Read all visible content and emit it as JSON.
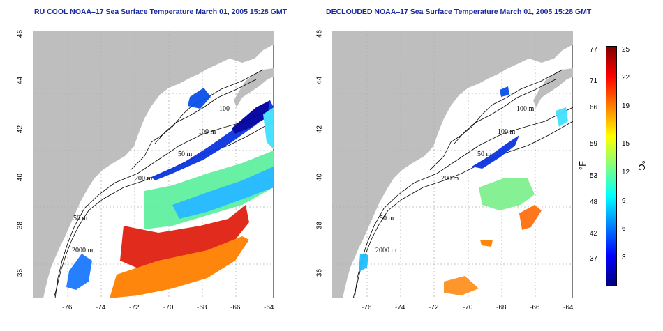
{
  "titles": {
    "left": "RU COOL NOAA–17 Sea Surface Temperature March 01, 2005 15:28 GMT",
    "right": "DECLOUDED NOAA–17 Sea Surface Temperature March 01, 2005 15:28 GMT"
  },
  "axes": {
    "x_ticks": [
      "-76",
      "-74",
      "-72",
      "-70",
      "-68",
      "-66",
      "-64"
    ],
    "y_ticks": [
      "46",
      "44",
      "42",
      "40",
      "38",
      "36"
    ]
  },
  "contours": {
    "c100a": "100 m",
    "c100b": "100 m",
    "c50": "50 m",
    "c200": "200 m",
    "c50s": "50 m",
    "c2000": "2000 m",
    "c100_left_top": "100"
  },
  "colorbar": {
    "fahrenheit_ticks": [
      "77",
      "71",
      "66",
      "59",
      "53",
      "48",
      "42",
      "37"
    ],
    "celsius_ticks": [
      "25",
      "22",
      "19",
      "15",
      "12",
      "9",
      "6",
      "3"
    ],
    "unit_f": "°F",
    "unit_c": "°C",
    "colors": [
      "#000080",
      "#0000ff",
      "#0080ff",
      "#00ffff",
      "#80ff80",
      "#ffff00",
      "#ff8000",
      "#ff0000",
      "#800000"
    ]
  },
  "colors": {
    "land": "#bebebe",
    "ocean": "#ffffff",
    "grid": "#b0b0b0"
  }
}
